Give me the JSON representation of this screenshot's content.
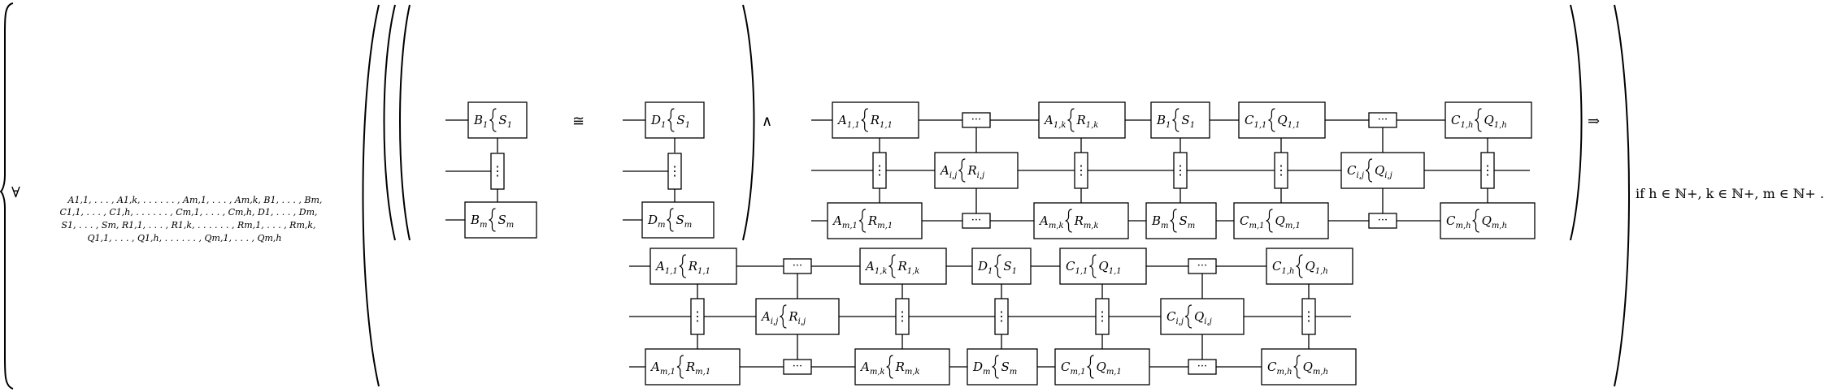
{
  "quantifier": {
    "symbol": "∀",
    "lines": [
      "A1,1, . . . , A1,k, . . . . . . , Am,1, . . . , Am,k, B1, . . . , Bm,",
      "C1,1, . . . , C1,h, . . . . . . , Cm,1, . . . , Cm,h, D1, . . . , Dm,",
      "S1, . . . , Sm, R1,1, . . . , R1,k, . . . . . . , Rm,1, . . . , Rm,k,",
      "Q1,1, . . . , Q1,h, . . . . . . , Qm,1, . . . , Qm,h"
    ]
  },
  "symbols": {
    "iso": "≅",
    "and": "∧",
    "implies": "⇒"
  },
  "condition": "if h ∈ ℕ+, k ∈ ℕ+, m ∈ ℕ+ .",
  "dots": "···",
  "vdots": "⋮",
  "left_equiv": {
    "lhs": {
      "top": {
        "v": "B",
        "vs": "1",
        "w": "S",
        "ws": "1"
      },
      "bottom": {
        "v": "B",
        "vs": "m",
        "w": "S",
        "ws": "m"
      }
    },
    "rhs": {
      "top": {
        "v": "D",
        "vs": "1",
        "w": "S",
        "ws": "1"
      },
      "bottom": {
        "v": "D",
        "vs": "m",
        "w": "S",
        "ws": "m"
      }
    }
  },
  "grid": {
    "top": [
      {
        "v": "A",
        "vs": "1,1",
        "w": "R",
        "ws": "1,1"
      },
      {
        "v": "A",
        "vs": "1,k",
        "w": "R",
        "ws": "1,k"
      },
      {
        "v": "B",
        "vs": "1",
        "w": "S",
        "ws": "1"
      },
      {
        "v": "C",
        "vs": "1,1",
        "w": "Q",
        "ws": "1,1"
      },
      {
        "v": "C",
        "vs": "1,h",
        "w": "Q",
        "ws": "1,h"
      }
    ],
    "middle": [
      {
        "v": "A",
        "vs": "i,j",
        "w": "R",
        "ws": "i,j"
      },
      {
        "v": "C",
        "vs": "i,j",
        "w": "Q",
        "ws": "i,j"
      }
    ],
    "bottom": [
      {
        "v": "A",
        "vs": "m,1",
        "w": "R",
        "ws": "m,1"
      },
      {
        "v": "A",
        "vs": "m,k",
        "w": "R",
        "ws": "m,k"
      },
      {
        "v": "B",
        "vs": "m",
        "w": "S",
        "ws": "m"
      },
      {
        "v": "C",
        "vs": "m,1",
        "w": "Q",
        "ws": "m,1"
      },
      {
        "v": "C",
        "vs": "m,h",
        "w": "Q",
        "ws": "m,h"
      }
    ]
  },
  "grid2": {
    "top": [
      {
        "v": "A",
        "vs": "1,1",
        "w": "R",
        "ws": "1,1"
      },
      {
        "v": "A",
        "vs": "1,k",
        "w": "R",
        "ws": "1,k"
      },
      {
        "v": "D",
        "vs": "1",
        "w": "S",
        "ws": "1"
      },
      {
        "v": "C",
        "vs": "1,1",
        "w": "Q",
        "ws": "1,1"
      },
      {
        "v": "C",
        "vs": "1,h",
        "w": "Q",
        "ws": "1,h"
      }
    ],
    "middle": [
      {
        "v": "A",
        "vs": "i,j",
        "w": "R",
        "ws": "i,j"
      },
      {
        "v": "C",
        "vs": "i,j",
        "w": "Q",
        "ws": "i,j"
      }
    ],
    "bottom": [
      {
        "v": "A",
        "vs": "m,1",
        "w": "R",
        "ws": "m,1"
      },
      {
        "v": "A",
        "vs": "m,k",
        "w": "R",
        "ws": "m,k"
      },
      {
        "v": "D",
        "vs": "m",
        "w": "S",
        "ws": "m"
      },
      {
        "v": "C",
        "vs": "m,1",
        "w": "Q",
        "ws": "m,1"
      },
      {
        "v": "C",
        "vs": "m,h",
        "w": "Q",
        "ws": "m,h"
      }
    ]
  }
}
